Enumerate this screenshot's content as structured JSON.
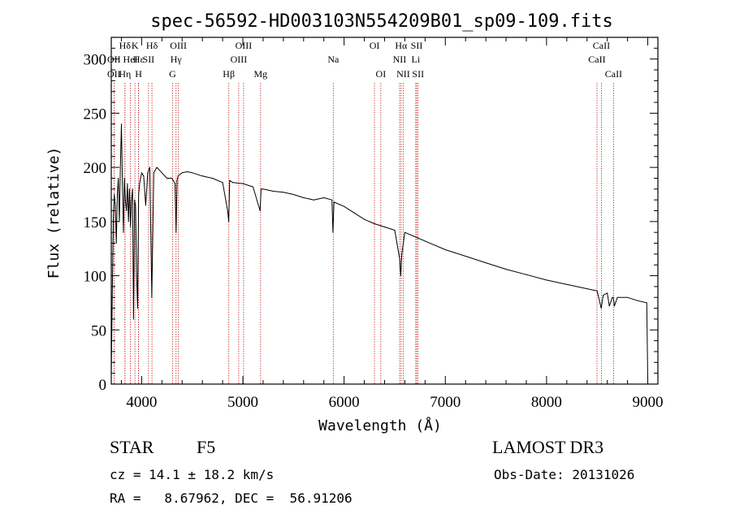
{
  "chart_data": {
    "type": "line",
    "title": "spec-56592-HD003103N554209B01_sp09-109.fits",
    "xlabel": "Wavelength (Å)",
    "ylabel": "Flux (relative)",
    "xlim": [
      3700,
      9100
    ],
    "ylim": [
      0,
      320
    ],
    "xticks": [
      4000,
      5000,
      6000,
      7000,
      8000,
      9000
    ],
    "yticks": [
      0,
      50,
      100,
      150,
      200,
      250,
      300
    ],
    "series": [
      {
        "name": "spectrum",
        "color": "#000000",
        "x": [
          3700,
          3710,
          3720,
          3730,
          3740,
          3750,
          3760,
          3770,
          3780,
          3790,
          3800,
          3810,
          3820,
          3830,
          3840,
          3850,
          3860,
          3870,
          3880,
          3890,
          3900,
          3910,
          3920,
          3930,
          3940,
          3950,
          3960,
          3970,
          3980,
          3990,
          4000,
          4020,
          4040,
          4060,
          4080,
          4100,
          4120,
          4150,
          4200,
          4250,
          4300,
          4330,
          4340,
          4350,
          4360,
          4400,
          4450,
          4500,
          4600,
          4700,
          4800,
          4850,
          4860,
          4870,
          4900,
          5000,
          5100,
          5170,
          5180,
          5200,
          5300,
          5400,
          5500,
          5600,
          5700,
          5800,
          5880,
          5890,
          5900,
          5950,
          6000,
          6100,
          6200,
          6300,
          6400,
          6500,
          6550,
          6560,
          6570,
          6600,
          6700,
          6800,
          7000,
          7200,
          7400,
          7600,
          7800,
          8000,
          8200,
          8400,
          8500,
          8540,
          8560,
          8600,
          8620,
          8650,
          8660,
          8670,
          8700,
          8800,
          8900,
          8990,
          9000
        ],
        "y": [
          8,
          80,
          150,
          175,
          165,
          130,
          175,
          190,
          150,
          200,
          240,
          185,
          140,
          190,
          170,
          160,
          185,
          150,
          180,
          145,
          170,
          180,
          60,
          170,
          165,
          100,
          70,
          175,
          185,
          190,
          195,
          192,
          165,
          195,
          200,
          80,
          195,
          200,
          195,
          190,
          190,
          185,
          140,
          188,
          192,
          195,
          196,
          195,
          192,
          190,
          186,
          160,
          150,
          188,
          186,
          185,
          182,
          160,
          180,
          180,
          178,
          177,
          175,
          172,
          170,
          172,
          170,
          140,
          168,
          166,
          164,
          158,
          152,
          148,
          145,
          142,
          115,
          100,
          120,
          140,
          136,
          132,
          124,
          118,
          112,
          106,
          101,
          96,
          92,
          88,
          86,
          70,
          82,
          84,
          72,
          80,
          80,
          72,
          80,
          80,
          77,
          75,
          5
        ]
      }
    ],
    "spectral_lines": [
      {
        "label": "Hδ",
        "x": 4102,
        "row": 0
      },
      {
        "label": "K",
        "x": 3934,
        "row": 0
      },
      {
        "label": "Hδ",
        "x": 3835,
        "row": 0
      },
      {
        "label": "OII",
        "x": 3727,
        "row": 1
      },
      {
        "label": "OII",
        "x": 3727,
        "row": 2
      },
      {
        "label": "Hε",
        "x": 3970,
        "row": 1
      },
      {
        "label": "HeI",
        "x": 3889,
        "row": 1
      },
      {
        "label": "SII",
        "x": 4068,
        "row": 1
      },
      {
        "label": "Hη",
        "x": 3835,
        "row": 2
      },
      {
        "label": "H",
        "x": 3969,
        "row": 2
      },
      {
        "label": "OIII",
        "x": 4363,
        "row": 0
      },
      {
        "label": "Hγ",
        "x": 4340,
        "row": 1
      },
      {
        "label": "G",
        "x": 4305,
        "row": 2
      },
      {
        "label": "OIII",
        "x": 5007,
        "row": 0
      },
      {
        "label": "OIII",
        "x": 4959,
        "row": 1
      },
      {
        "label": "Hβ",
        "x": 4861,
        "row": 2
      },
      {
        "label": "Mg",
        "x": 5175,
        "row": 2
      },
      {
        "label": "Na",
        "x": 5893,
        "row": 1
      },
      {
        "label": "OI",
        "x": 6300,
        "row": 0
      },
      {
        "label": "OI",
        "x": 6363,
        "row": 2
      },
      {
        "label": "Hα",
        "x": 6563,
        "row": 0
      },
      {
        "label": "SII",
        "x": 6717,
        "row": 0
      },
      {
        "label": "NII",
        "x": 6548,
        "row": 1
      },
      {
        "label": "Li",
        "x": 6708,
        "row": 1
      },
      {
        "label": "NII",
        "x": 6584,
        "row": 2
      },
      {
        "label": "SII",
        "x": 6731,
        "row": 2
      },
      {
        "label": "CaII",
        "x": 8542,
        "row": 0
      },
      {
        "label": "CaII",
        "x": 8498,
        "row": 1
      },
      {
        "label": "CaII",
        "x": 8662,
        "row": 2
      }
    ]
  },
  "info": {
    "object_class": "STAR",
    "subclass": "F5",
    "survey": "LAMOST DR3",
    "cz": "cz = 14.1 ± 18.2 km/s",
    "obs_date": "Obs-Date: 20131026",
    "ra_dec": "RA =   8.67962, DEC =  56.91206"
  },
  "colors": {
    "line_marker": "#c02020",
    "spectrum": "#000000"
  }
}
